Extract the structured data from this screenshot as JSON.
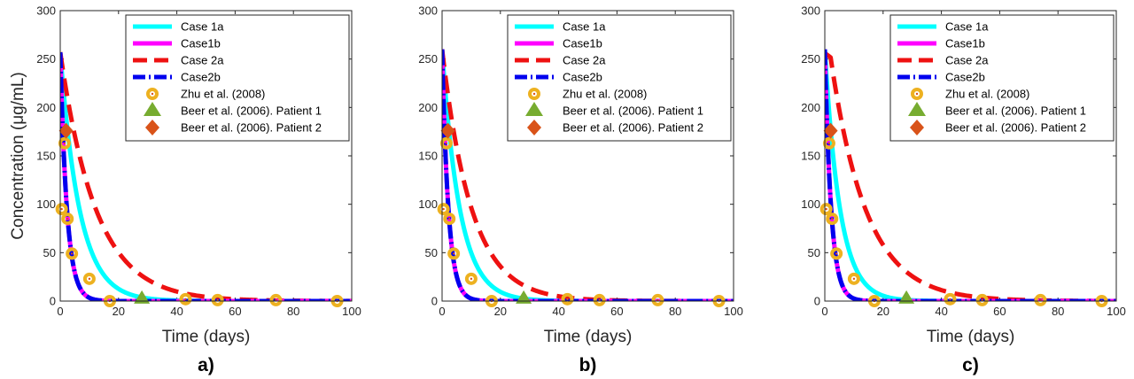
{
  "chart_data": [
    {
      "type": "line",
      "panel_label": "a)",
      "xlabel": "Time (days)",
      "ylabel": "Concentration (μg/mL)",
      "xlim": [
        0,
        100
      ],
      "ylim": [
        0,
        300
      ],
      "xticks": [
        "0",
        "20",
        "40",
        "60",
        "80",
        "100"
      ],
      "yticks": [
        "0",
        "50",
        "100",
        "150",
        "200",
        "250",
        "300"
      ],
      "grid": false,
      "legend_position": "top-right",
      "series": [
        {
          "name": "Case 1a",
          "color": "#00ffff",
          "style": "solid",
          "c0": 257,
          "half_life_days": 4.6
        },
        {
          "name": "Case1b",
          "color": "#ff00ff",
          "style": "solid",
          "c0": 257,
          "half_life_days": 1.6
        },
        {
          "name": "Case 2a",
          "color": "#ee1111",
          "style": "dashed",
          "c0": 257,
          "half_life_days": 8.5
        },
        {
          "name": "Case2b",
          "color": "#0000ee",
          "style": "dashdot",
          "c0": 257,
          "half_life_days": 1.6
        }
      ],
      "observed": [
        {
          "name": "Zhu et al. (2008)",
          "marker": "circle",
          "color": "#edb120",
          "points": [
            [
              0.5,
              95
            ],
            [
              1.5,
              163
            ],
            [
              2.5,
              85
            ],
            [
              4,
              49
            ],
            [
              10,
              23
            ],
            [
              17,
              0
            ],
            [
              43,
              2
            ],
            [
              54,
              1
            ],
            [
              74,
              1
            ],
            [
              95,
              0
            ]
          ]
        },
        {
          "name": "Beer et al. (2006). Patient 1",
          "marker": "triangle",
          "color": "#77ac30",
          "points": [
            [
              28,
              2
            ]
          ]
        },
        {
          "name": "Beer et al. (2006). Patient 2",
          "marker": "diamond",
          "color": "#d95319",
          "points": [
            [
              2,
              176
            ]
          ]
        }
      ]
    },
    {
      "type": "line",
      "panel_label": "b)",
      "xlabel": "Time (days)",
      "ylabel": "",
      "xlim": [
        0,
        100
      ],
      "ylim": [
        0,
        300
      ],
      "xticks": [
        "0",
        "20",
        "40",
        "60",
        "80",
        "100"
      ],
      "yticks": [
        "0",
        "50",
        "100",
        "150",
        "200",
        "250",
        "300"
      ],
      "grid": false,
      "legend_position": "top-right",
      "series": [
        {
          "name": "Case 1a",
          "color": "#00ffff",
          "style": "solid",
          "c0": 260,
          "half_life_days": 4.2
        },
        {
          "name": "Case1b",
          "color": "#ff00ff",
          "style": "solid",
          "c0": 260,
          "half_life_days": 1.5
        },
        {
          "name": "Case 2a",
          "color": "#ee1111",
          "style": "dashed",
          "c0": 260,
          "half_life_days": 7.0
        },
        {
          "name": "Case2b",
          "color": "#0000ee",
          "style": "dashdot",
          "c0": 260,
          "half_life_days": 1.5
        }
      ],
      "observed": [
        {
          "name": "Zhu et al. (2008)",
          "marker": "circle",
          "color": "#edb120",
          "points": [
            [
              0.5,
              95
            ],
            [
              1.5,
              163
            ],
            [
              2.5,
              85
            ],
            [
              4,
              49
            ],
            [
              10,
              23
            ],
            [
              17,
              0
            ],
            [
              43,
              2
            ],
            [
              54,
              1
            ],
            [
              74,
              1
            ],
            [
              95,
              0
            ]
          ]
        },
        {
          "name": "Beer et al. (2006). Patient 1",
          "marker": "triangle",
          "color": "#77ac30",
          "points": [
            [
              28,
              2
            ]
          ]
        },
        {
          "name": "Beer et al. (2006). Patient 2",
          "marker": "diamond",
          "color": "#d95319",
          "points": [
            [
              2,
              176
            ]
          ]
        }
      ]
    },
    {
      "type": "line",
      "panel_label": "c)",
      "xlabel": "Time (days)",
      "ylabel": "",
      "xlim": [
        0,
        100
      ],
      "ylim": [
        0,
        300
      ],
      "xticks": [
        "0",
        "20",
        "40",
        "60",
        "80",
        "100"
      ],
      "yticks": [
        "0",
        "50",
        "100",
        "150",
        "200",
        "250",
        "300"
      ],
      "grid": false,
      "legend_position": "top-right",
      "series": [
        {
          "name": "Case 1a",
          "color": "#00ffff",
          "style": "solid",
          "c0": 260,
          "half_life_days": 3.6
        },
        {
          "name": "Case1b",
          "color": "#ff00ff",
          "style": "solid",
          "c0": 260,
          "half_life_days": 1.5
        },
        {
          "name": "Case 2a",
          "color": "#ee1111",
          "style": "dashed",
          "c0": 260,
          "half_life_days": 8.5,
          "rise_days": 2
        },
        {
          "name": "Case2b",
          "color": "#0000ee",
          "style": "dashdot",
          "c0": 260,
          "half_life_days": 1.5
        }
      ],
      "observed": [
        {
          "name": "Zhu et al. (2008)",
          "marker": "circle",
          "color": "#edb120",
          "points": [
            [
              0.5,
              95
            ],
            [
              1.5,
              163
            ],
            [
              2.5,
              85
            ],
            [
              4,
              49
            ],
            [
              10,
              23
            ],
            [
              17,
              0
            ],
            [
              43,
              2
            ],
            [
              54,
              1
            ],
            [
              74,
              1
            ],
            [
              95,
              0
            ]
          ]
        },
        {
          "name": "Beer et al. (2006). Patient 1",
          "marker": "triangle",
          "color": "#77ac30",
          "points": [
            [
              28,
              2
            ]
          ]
        },
        {
          "name": "Beer et al. (2006). Patient 2",
          "marker": "diamond",
          "color": "#d95319",
          "points": [
            [
              2,
              176
            ]
          ]
        }
      ]
    }
  ]
}
